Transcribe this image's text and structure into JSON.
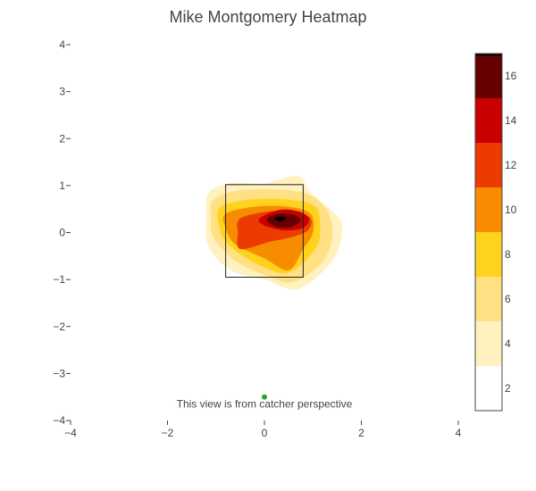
{
  "chart_data": {
    "type": "heatmap",
    "title": "Mike Montgomery Heatmap",
    "xlabel": "",
    "ylabel": "",
    "xlim": [
      -4,
      4
    ],
    "ylim": [
      -4,
      4
    ],
    "x_ticks": [
      -4,
      -2,
      0,
      2,
      4
    ],
    "x_tick_labels": [
      "−4",
      "−2",
      "0",
      "2",
      "4"
    ],
    "y_ticks": [
      -4,
      -3,
      -2,
      -1,
      0,
      1,
      2,
      3,
      4
    ],
    "y_tick_labels": [
      "−4",
      "−3",
      "−2",
      "−1",
      "0",
      "1",
      "2",
      "3",
      "4"
    ],
    "grid": false,
    "contour_levels": [
      {
        "value": 2,
        "color": "#fff2c0"
      },
      {
        "value": 4,
        "color": "#ffe082"
      },
      {
        "value": 6,
        "color": "#ffd21e"
      },
      {
        "value": 8,
        "color": "#f88c00"
      },
      {
        "value": 10,
        "color": "#ec3b00"
      },
      {
        "value": 12,
        "color": "#c80000"
      },
      {
        "value": 14,
        "color": "#650000"
      },
      {
        "value": 16,
        "color": "#000000"
      }
    ],
    "contours": [
      {
        "level": 2,
        "points": [
          [
            -1.15,
            0.85
          ],
          [
            -0.7,
            1.05
          ],
          [
            0,
            1.05
          ],
          [
            0.7,
            1.2
          ],
          [
            0.95,
            0.85
          ],
          [
            1.5,
            0.35
          ],
          [
            1.6,
            0.0
          ],
          [
            1.4,
            -0.6
          ],
          [
            0.7,
            -1.2
          ],
          [
            0,
            -1.0
          ],
          [
            -0.7,
            -0.8
          ],
          [
            -1.15,
            -0.3
          ],
          [
            -1.2,
            0.35
          ]
        ]
      },
      {
        "level": 4,
        "points": [
          [
            -1.05,
            0.7
          ],
          [
            -0.5,
            0.9
          ],
          [
            0.5,
            0.9
          ],
          [
            1.1,
            0.7
          ],
          [
            1.4,
            0.15
          ],
          [
            1.25,
            -0.55
          ],
          [
            0.6,
            -1.05
          ],
          [
            0,
            -0.9
          ],
          [
            -0.6,
            -0.6
          ],
          [
            -1.05,
            -0.1
          ],
          [
            -1.1,
            0.35
          ]
        ]
      },
      {
        "level": 6,
        "points": [
          [
            -0.9,
            0.55
          ],
          [
            -0.3,
            0.7
          ],
          [
            0.5,
            0.7
          ],
          [
            1.05,
            0.55
          ],
          [
            1.15,
            0.1
          ],
          [
            1.05,
            -0.35
          ],
          [
            0.5,
            -0.85
          ],
          [
            -0.1,
            -0.7
          ],
          [
            -0.75,
            -0.25
          ],
          [
            -0.95,
            0.2
          ]
        ]
      },
      {
        "level": 8,
        "points": [
          [
            -0.8,
            0.4
          ],
          [
            -0.2,
            0.55
          ],
          [
            0.5,
            0.55
          ],
          [
            0.95,
            0.4
          ],
          [
            1.0,
            0.0
          ],
          [
            0.8,
            -0.35
          ],
          [
            0.5,
            -0.8
          ],
          [
            0,
            -0.55
          ],
          [
            -0.6,
            -0.25
          ],
          [
            -0.8,
            0.1
          ]
        ]
      },
      {
        "level": 10,
        "points": [
          [
            -0.5,
            0.3
          ],
          [
            0.1,
            0.45
          ],
          [
            0.6,
            0.45
          ],
          [
            0.95,
            0.3
          ],
          [
            0.9,
            0.05
          ],
          [
            0.55,
            -0.1
          ],
          [
            0.1,
            -0.2
          ],
          [
            -0.5,
            -0.35
          ],
          [
            -0.55,
            0.0
          ]
        ]
      },
      {
        "level": 12,
        "points": [
          [
            -0.1,
            0.3
          ],
          [
            0.3,
            0.48
          ],
          [
            0.7,
            0.45
          ],
          [
            0.92,
            0.3
          ],
          [
            0.8,
            0.1
          ],
          [
            0.4,
            0.05
          ],
          [
            0.0,
            0.15
          ]
        ]
      },
      {
        "level": 14,
        "points": [
          [
            0.05,
            0.28
          ],
          [
            0.3,
            0.4
          ],
          [
            0.6,
            0.38
          ],
          [
            0.75,
            0.25
          ],
          [
            0.55,
            0.12
          ],
          [
            0.25,
            0.12
          ]
        ]
      },
      {
        "level": 16,
        "points": [
          [
            0.2,
            0.3
          ],
          [
            0.32,
            0.34
          ],
          [
            0.45,
            0.3
          ],
          [
            0.32,
            0.24
          ]
        ]
      }
    ],
    "strike_zone": {
      "x0": -0.8,
      "x1": 0.8,
      "y0": -0.95,
      "y1": 1.02
    },
    "marker": {
      "x": 0,
      "y": -3.5,
      "color": "#2ca02c"
    },
    "annotation": {
      "text": "This view is from catcher perspective",
      "x": 0,
      "y": -3.65
    },
    "colorbar": {
      "min": 1,
      "max": 17,
      "tick_values": [
        2,
        4,
        6,
        8,
        10,
        12,
        14,
        16
      ],
      "tick_labels": [
        "2",
        "4",
        "6",
        "8",
        "10",
        "12",
        "14",
        "16"
      ],
      "bands": [
        {
          "from": 1,
          "to": 3,
          "color": "#ffffff"
        },
        {
          "from": 3,
          "to": 5,
          "color": "#fff2c0"
        },
        {
          "from": 5,
          "to": 7,
          "color": "#ffe082"
        },
        {
          "from": 7,
          "to": 9,
          "color": "#ffd21e"
        },
        {
          "from": 9,
          "to": 11,
          "color": "#f88c00"
        },
        {
          "from": 11,
          "to": 13,
          "color": "#ec3b00"
        },
        {
          "from": 13,
          "to": 15,
          "color": "#c80000"
        },
        {
          "from": 15,
          "to": 17,
          "color": "#650000"
        },
        {
          "from": 16.9,
          "to": 17,
          "color": "#000000"
        }
      ]
    }
  }
}
